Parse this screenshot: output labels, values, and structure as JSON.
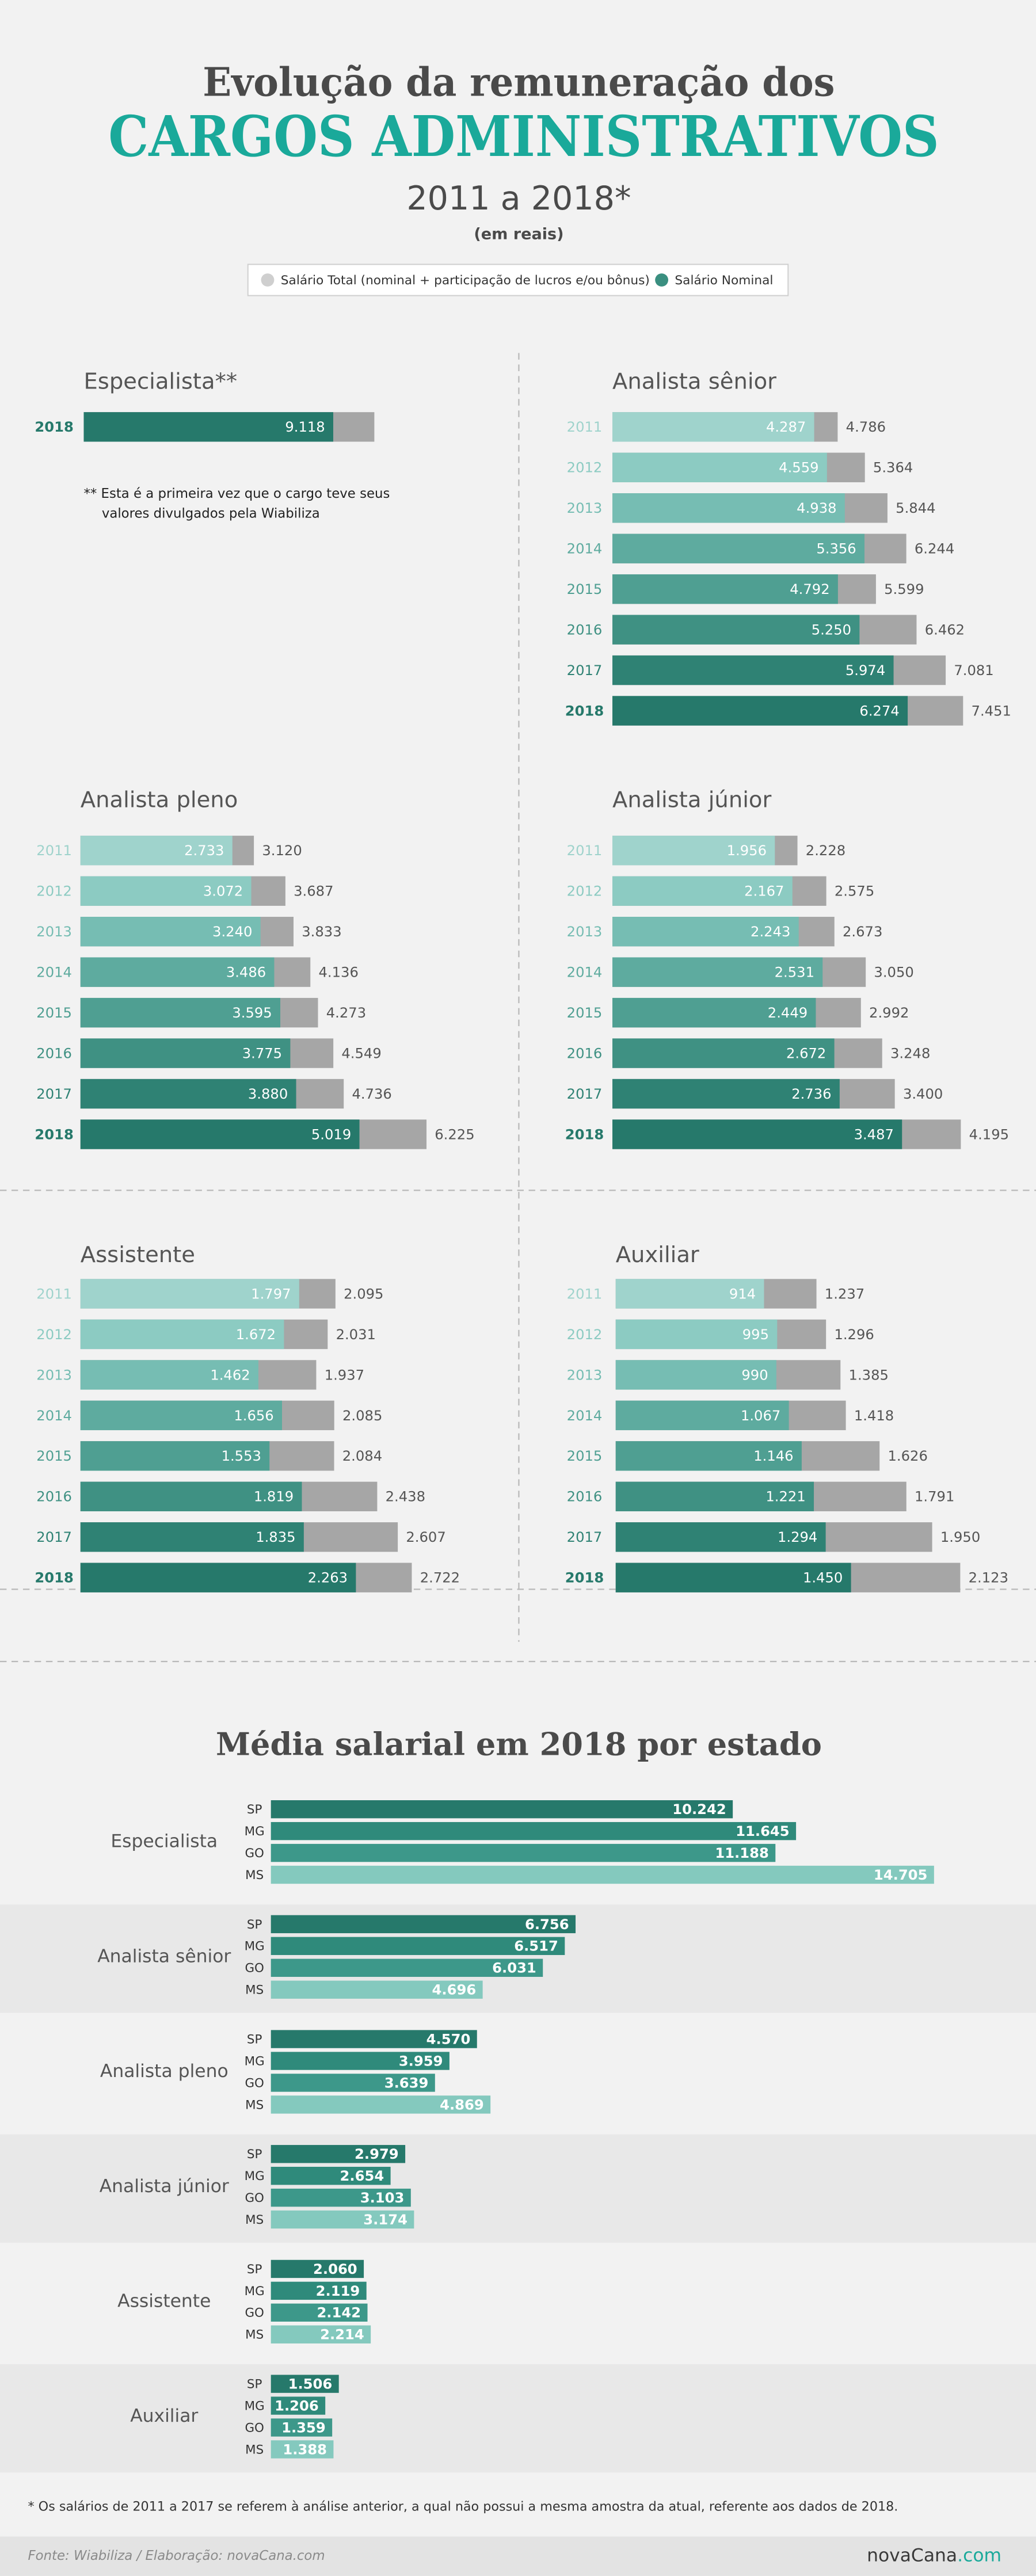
{
  "header": {
    "title": "Evolução da remuneração dos",
    "title_highlight": "CARGOS ADMINISTRATIVOS",
    "subtitle": "2011 a 2018*",
    "unit_note": "(em reais)"
  },
  "legend": {
    "items": [
      {
        "name": "Salário Total (nominal + participação de lucros e/ou bônus)",
        "color": "#cfcfcf"
      },
      {
        "name": "Salário Nominal",
        "color": "#3a8f80"
      }
    ]
  },
  "chart_data": [
    {
      "type": "bar",
      "title": "Especialista**",
      "categories": [
        "2018"
      ],
      "series": [
        {
          "color": "#a6a6a6",
          "values": [
            10620
          ],
          "value_labels": [
            null
          ]
        },
        {
          "colors": [
            "#26796b"
          ],
          "values": [
            9118
          ],
          "value_labels": [
            "9.118"
          ]
        }
      ],
      "xlim": [
        0,
        12900
      ],
      "note": [
        "** Esta é a primeira vez que o cargo teve seus",
        "valores divulgados pela Wiabiliza"
      ]
    },
    {
      "type": "bar",
      "title": "Analista sênior",
      "categories": [
        "2011",
        "2012",
        "2013",
        "2014",
        "2015",
        "2016",
        "2017",
        "2018"
      ],
      "series": [
        {
          "color": "#a6a6a6",
          "values": [
            4786,
            5364,
            5844,
            6244,
            5599,
            6462,
            7081,
            7451
          ],
          "value_labels": [
            "4.786",
            "5.364",
            "5.844",
            "6.244",
            "5.599",
            "6.462",
            "7.081",
            "7.451"
          ]
        },
        {
          "colors": [
            "#9fd3cc",
            "#8ccbc2",
            "#76bdb3",
            "#5eab9f",
            "#4f9f92",
            "#3f9183",
            "#2f8274",
            "#26796b"
          ],
          "values": [
            4287,
            4559,
            4938,
            5356,
            4792,
            5250,
            5974,
            6274
          ],
          "value_labels": [
            "4.287",
            "4.559",
            "4.938",
            "5.356",
            "4.792",
            "5.250",
            "5.974",
            "6.274"
          ]
        }
      ],
      "xlim": [
        0,
        7500
      ]
    },
    {
      "type": "bar",
      "title": "Analista pleno",
      "categories": [
        "2011",
        "2012",
        "2013",
        "2014",
        "2015",
        "2016",
        "2017",
        "2018"
      ],
      "series": [
        {
          "color": "#a6a6a6",
          "values": [
            3120,
            3687,
            3833,
            4136,
            4273,
            4549,
            4736,
            6225
          ],
          "value_labels": [
            "3.120",
            "3.687",
            "3.833",
            "4.136",
            "4.273",
            "4.549",
            "4.736",
            "6.225"
          ]
        },
        {
          "colors": [
            "#9fd3cc",
            "#8ccbc2",
            "#76bdb3",
            "#5eab9f",
            "#4f9f92",
            "#3f9183",
            "#2f8274",
            "#26796b"
          ],
          "values": [
            2733,
            3072,
            3240,
            3486,
            3595,
            3775,
            3880,
            5019
          ],
          "value_labels": [
            "2.733",
            "3.072",
            "3.240",
            "3.486",
            "3.595",
            "3.775",
            "3.880",
            "5.019"
          ]
        }
      ],
      "xlim": [
        0,
        6350
      ]
    },
    {
      "type": "bar",
      "title": "Analista júnior",
      "categories": [
        "2011",
        "2012",
        "2013",
        "2014",
        "2015",
        "2016",
        "2017",
        "2018"
      ],
      "series": [
        {
          "color": "#a6a6a6",
          "values": [
            2228,
            2575,
            2673,
            3050,
            2992,
            3248,
            3400,
            4195
          ],
          "value_labels": [
            "2.228",
            "2.575",
            "2.673",
            "3.050",
            "2.992",
            "3.248",
            "3.400",
            "4.195"
          ]
        },
        {
          "colors": [
            "#9fd3cc",
            "#8ccbc2",
            "#76bdb3",
            "#5eab9f",
            "#4f9f92",
            "#3f9183",
            "#2f8274",
            "#26796b"
          ],
          "values": [
            1956,
            2167,
            2243,
            2531,
            2449,
            2672,
            2736,
            3487
          ],
          "value_labels": [
            "1.956",
            "2.167",
            "2.243",
            "2.531",
            "2.449",
            "2.672",
            "2.736",
            "3.487"
          ]
        }
      ],
      "xlim": [
        0,
        4250
      ]
    },
    {
      "type": "bar",
      "title": "Assistente",
      "categories": [
        "2011",
        "2012",
        "2013",
        "2014",
        "2015",
        "2016",
        "2017",
        "2018"
      ],
      "series": [
        {
          "color": "#a6a6a6",
          "values": [
            2095,
            2031,
            1937,
            2085,
            2084,
            2438,
            2607,
            2722
          ],
          "value_labels": [
            "2.095",
            "2.031",
            "1.937",
            "2.085",
            "2.084",
            "2.438",
            "2.607",
            "2.722"
          ]
        },
        {
          "colors": [
            "#9fd3cc",
            "#8ccbc2",
            "#76bdb3",
            "#5eab9f",
            "#4f9f92",
            "#3f9183",
            "#2f8274",
            "#26796b"
          ],
          "values": [
            1797,
            1672,
            1462,
            1656,
            1553,
            1819,
            1835,
            2263
          ],
          "value_labels": [
            "1.797",
            "1.672",
            "1.462",
            "1.656",
            "1.553",
            "1.819",
            "1.835",
            "2.263"
          ]
        }
      ],
      "xlim": [
        0,
        2900
      ]
    },
    {
      "type": "bar",
      "title": "Auxiliar",
      "categories": [
        "2011",
        "2012",
        "2013",
        "2014",
        "2015",
        "2016",
        "2017",
        "2018"
      ],
      "series": [
        {
          "color": "#a6a6a6",
          "values": [
            1237,
            1296,
            1385,
            1418,
            1626,
            1791,
            1950,
            2123
          ],
          "value_labels": [
            "1.237",
            "1.296",
            "1.385",
            "1.418",
            "1.626",
            "1.791",
            "1.950",
            "2.123"
          ]
        },
        {
          "colors": [
            "#9fd3cc",
            "#8ccbc2",
            "#76bdb3",
            "#5eab9f",
            "#4f9f92",
            "#3f9183",
            "#2f8274",
            "#26796b"
          ],
          "values": [
            914,
            995,
            990,
            1067,
            1146,
            1221,
            1294,
            1450
          ],
          "value_labels": [
            "914",
            "995",
            "990",
            "1.067",
            "1.146",
            "1.221",
            "1.294",
            "1.450"
          ]
        }
      ],
      "xlim": [
        0,
        2175
      ]
    },
    {
      "type": "grouped_bar",
      "title": "Média salarial em 2018 por estado",
      "categories": [
        "SP",
        "MG",
        "GO",
        "MS"
      ],
      "colors": [
        "#26796b",
        "#2f8a7b",
        "#3d988a",
        "#84c9be"
      ],
      "groups": [
        {
          "name": "Especialista",
          "values": [
            10242,
            11645,
            11188,
            14705
          ],
          "value_labels": [
            "10.242",
            "11.645",
            "11.188",
            "14.705"
          ]
        },
        {
          "name": "Analista sênior",
          "values": [
            6756,
            6517,
            6031,
            4696
          ],
          "value_labels": [
            "6.756",
            "6.517",
            "6.031",
            "4.696"
          ]
        },
        {
          "name": "Analista pleno",
          "values": [
            4570,
            3959,
            3639,
            4869
          ],
          "value_labels": [
            "4.570",
            "3.959",
            "3.639",
            "4.869"
          ]
        },
        {
          "name": "Analista júnior",
          "values": [
            2979,
            2654,
            3103,
            3174
          ],
          "value_labels": [
            "2.979",
            "2.654",
            "3.103",
            "3.174"
          ]
        },
        {
          "name": "Assistente",
          "values": [
            2060,
            2119,
            2142,
            2214
          ],
          "value_labels": [
            "2.060",
            "2.119",
            "2.142",
            "2.214"
          ]
        },
        {
          "name": "Auxiliar",
          "values": [
            1506,
            1206,
            1359,
            1388
          ],
          "value_labels": [
            "1.506",
            "1.206",
            "1.359",
            "1.388"
          ]
        }
      ],
      "xlim": [
        0,
        15000
      ]
    }
  ],
  "footnote": "* Os salários de 2011 a 2017 se referem à análise anterior, a qual não possui a mesma amostra da atual, referente aos dados de 2018.",
  "footer": {
    "source": "Fonte: Wiabiliza  / Elaboração: novaCana.com",
    "logo_main": "novaCana",
    "logo_suffix": ".com"
  }
}
